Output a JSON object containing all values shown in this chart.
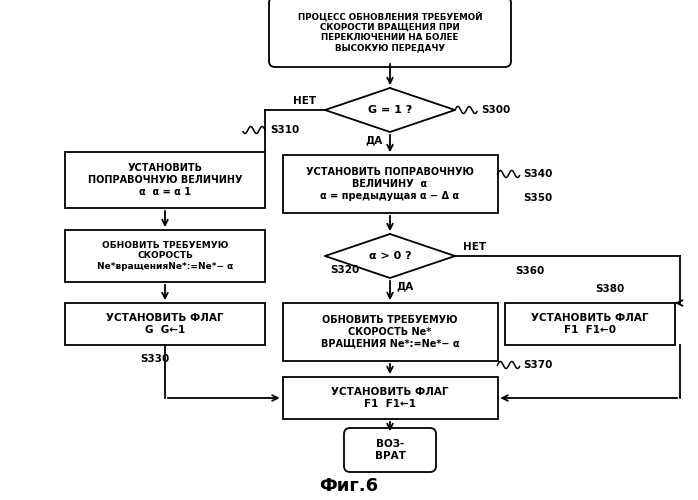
{
  "title": "Фиг.6",
  "bg": "#ffffff",
  "start_text": "ПРОЦЕСС ОБНОВЛЕНИЯ ТРЕБУЕМОЙ\nСКОРОСТИ ВРАЩЕНИЯ ПРИ\nПЕРЕКЛЮЧЕНИИ НА БОЛЕЕ\nВЫСОКУЮ ПЕРЕДАЧУ",
  "d1_text": "G = 1 ?",
  "d2_text": "α > 0 ?",
  "bl1_text": "УСТАНОВИТЬ\nПОПРАВОЧНУЮ ВЕЛИЧИНУ\nα  α = α 1",
  "br1_text": "УСТАНОВИТЬ ПОПРАВОЧНУЮ\nВЕЛИЧИНУ  α\nα = предыдущая α − Δ α",
  "bl2_text": "ОБНОВИТЬ ТРЕБУЕМУЮ\nСКОРОСТЬ\nNe*вращенияNe*:=Ne*− α",
  "bl3_text": "УСТАНОВИТЬ ФЛАГ\nG  G←1",
  "bm3_text": "ОБНОВИТЬ ТРЕБУЕМУЮ\nСКОРОСТЬ Ne*\nВРАЩЕНИЯ Ne*:=Ne*− α",
  "br3_text": "УСТАНОВИТЬ ФЛАГ\nF1  F1←0",
  "bbot_text": "УСТАНОВИТЬ ФЛАГ\nF1  F1←1",
  "end_text": "ВОЗ-\nВРАТ",
  "het": "НЕТ",
  "da": "ДА"
}
